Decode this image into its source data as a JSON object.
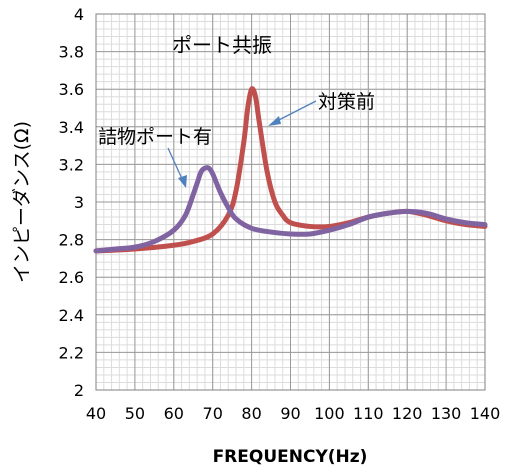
{
  "chart_data": {
    "type": "line",
    "title": "",
    "xlabel": "FREQUENCY(Hz)",
    "ylabel": "インピーダンス(Ω)",
    "xlim": [
      40,
      140
    ],
    "ylim": [
      2,
      4
    ],
    "x_ticks": [
      40,
      50,
      60,
      70,
      80,
      90,
      100,
      110,
      120,
      130,
      140
    ],
    "y_ticks": [
      2,
      2.2,
      2.4,
      2.6,
      2.8,
      3,
      3.2,
      3.4,
      3.6,
      3.8,
      4
    ],
    "y_tick_labels": [
      "2",
      "2.2",
      "2.4",
      "2.6",
      "2.8",
      "3",
      "3.2",
      "3.4",
      "3.6",
      "3.8",
      "4"
    ],
    "grid": true,
    "minor_grid": true,
    "legend": "none",
    "series": [
      {
        "name": "対策前",
        "color": "#c0504d",
        "x": [
          40,
          50,
          60,
          65,
          70,
          74,
          76,
          78,
          79,
          80,
          81,
          82,
          84,
          86,
          88,
          90,
          95,
          100,
          105,
          110,
          115,
          120,
          125,
          130,
          135,
          140
        ],
        "y": [
          2.74,
          2.75,
          2.77,
          2.79,
          2.83,
          2.93,
          3.06,
          3.32,
          3.5,
          3.6,
          3.56,
          3.42,
          3.16,
          3.0,
          2.93,
          2.89,
          2.87,
          2.87,
          2.89,
          2.92,
          2.94,
          2.95,
          2.93,
          2.9,
          2.88,
          2.87
        ]
      },
      {
        "name": "詰物ポート有",
        "color": "#8064a2",
        "x": [
          40,
          45,
          50,
          55,
          60,
          63,
          65,
          66,
          67,
          68,
          69,
          70,
          72,
          74,
          76,
          80,
          85,
          90,
          95,
          100,
          105,
          110,
          115,
          120,
          125,
          130,
          135,
          140
        ],
        "y": [
          2.74,
          2.75,
          2.76,
          2.79,
          2.85,
          2.93,
          3.04,
          3.1,
          3.16,
          3.18,
          3.18,
          3.15,
          3.05,
          2.97,
          2.91,
          2.86,
          2.84,
          2.83,
          2.83,
          2.85,
          2.88,
          2.92,
          2.94,
          2.95,
          2.94,
          2.91,
          2.89,
          2.88
        ]
      }
    ],
    "annotations": [
      {
        "text": "ポート共振"
      },
      {
        "text": "対策前"
      },
      {
        "text": "詰物ポート有"
      }
    ],
    "arrow_color": "#4f81bd"
  }
}
